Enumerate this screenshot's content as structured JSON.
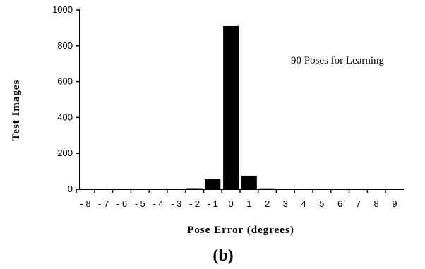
{
  "chart_data": {
    "type": "bar",
    "categories": [
      "-8",
      "-7",
      "-6",
      "-5",
      "-4",
      "-3",
      "-2",
      "-1",
      "0",
      "1",
      "2",
      "3",
      "4",
      "5",
      "6",
      "7",
      "8",
      "9"
    ],
    "values": [
      1,
      1,
      1,
      1,
      1,
      1,
      6,
      55,
      910,
      75,
      5,
      1,
      1,
      1,
      1,
      1,
      1,
      1
    ],
    "xlabel": "Pose Error (degrees)",
    "ylabel": "Test Images",
    "ylim": [
      0,
      1000
    ],
    "yticks": [
      0,
      200,
      400,
      600,
      800,
      1000
    ],
    "annotation": "90 Poses for Learning",
    "grid": false
  },
  "panel_label": "(b)"
}
